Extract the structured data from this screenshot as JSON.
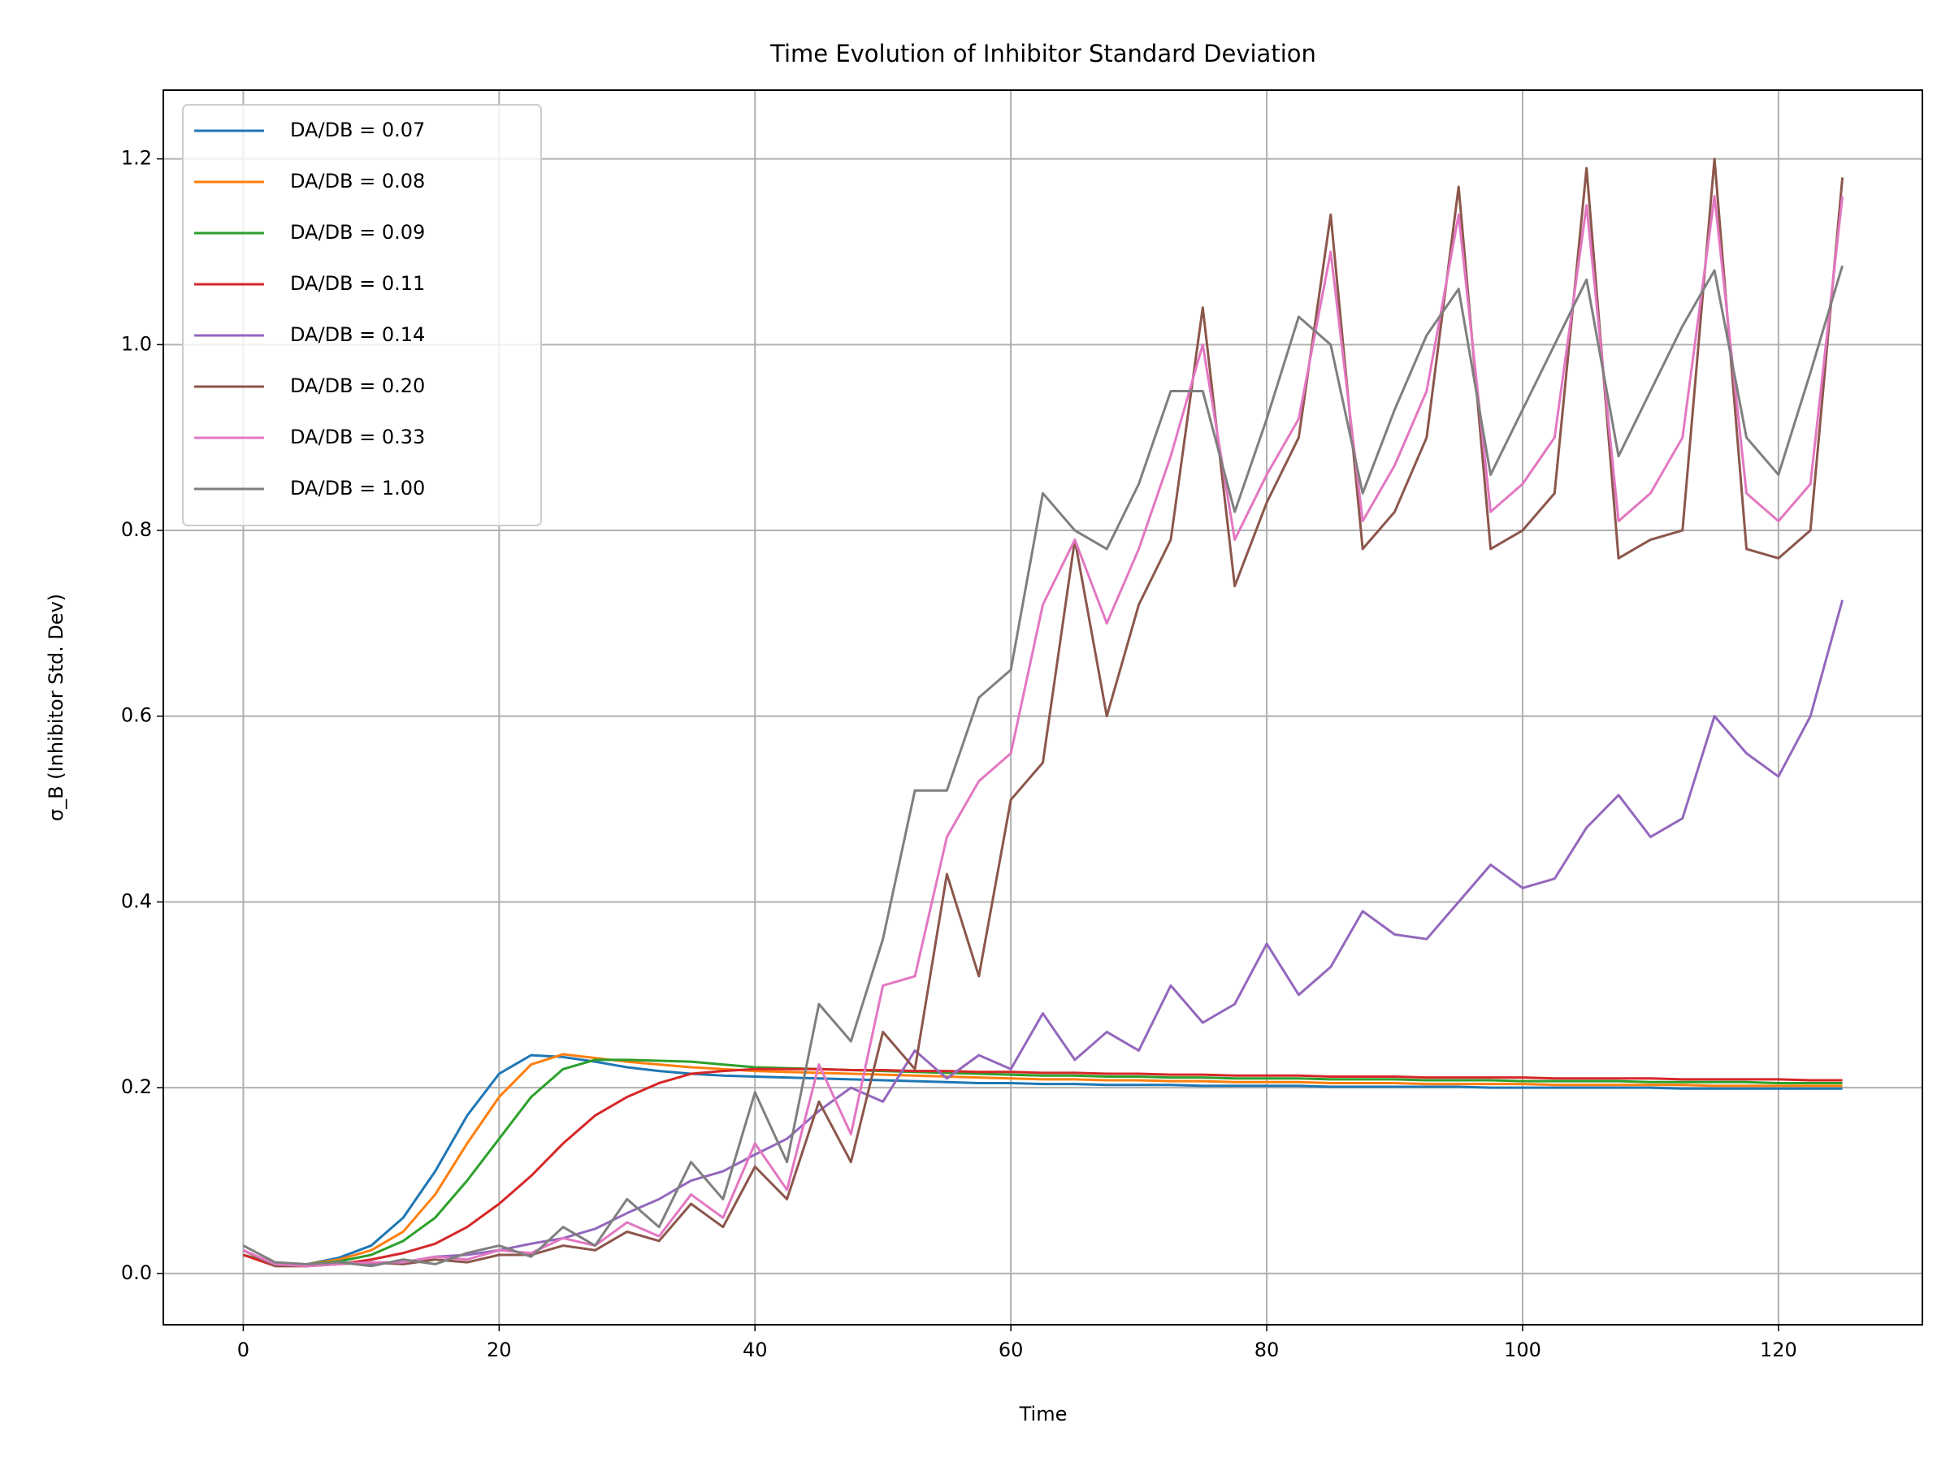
{
  "chart_data": {
    "type": "line",
    "title": "Time Evolution of Inhibitor Standard Deviation",
    "xlabel": "Time",
    "ylabel": "σ_B (Inhibitor Std. Dev)",
    "x": [
      0,
      2.5,
      5,
      7.5,
      10,
      12.5,
      15,
      17.5,
      20,
      22.5,
      25,
      27.5,
      30,
      32.5,
      35,
      37.5,
      40,
      42.5,
      45,
      47.5,
      50,
      52.5,
      55,
      57.5,
      60,
      62.5,
      65,
      67.5,
      70,
      72.5,
      75,
      77.5,
      80,
      82.5,
      85,
      87.5,
      90,
      92.5,
      95,
      97.5,
      100,
      102.5,
      105,
      107.5,
      110,
      112.5,
      115,
      117.5,
      120,
      122.5,
      125
    ],
    "series": [
      {
        "name": "DA/DB = 0.07",
        "color": "#1f77b4",
        "values": [
          0.02,
          0.01,
          0.01,
          0.017,
          0.03,
          0.06,
          0.11,
          0.17,
          0.215,
          0.235,
          0.233,
          0.228,
          0.222,
          0.218,
          0.215,
          0.213,
          0.212,
          0.211,
          0.21,
          0.209,
          0.208,
          0.207,
          0.206,
          0.205,
          0.205,
          0.204,
          0.204,
          0.203,
          0.203,
          0.203,
          0.202,
          0.202,
          0.202,
          0.202,
          0.201,
          0.201,
          0.201,
          0.201,
          0.201,
          0.2,
          0.2,
          0.2,
          0.2,
          0.2,
          0.2,
          0.199,
          0.199,
          0.199,
          0.199,
          0.199,
          0.199
        ]
      },
      {
        "name": "DA/DB = 0.08",
        "color": "#ff7f0e",
        "values": [
          0.02,
          0.01,
          0.01,
          0.015,
          0.025,
          0.045,
          0.085,
          0.14,
          0.19,
          0.225,
          0.236,
          0.232,
          0.228,
          0.225,
          0.222,
          0.22,
          0.218,
          0.217,
          0.216,
          0.215,
          0.214,
          0.213,
          0.212,
          0.211,
          0.21,
          0.209,
          0.209,
          0.208,
          0.208,
          0.207,
          0.207,
          0.206,
          0.206,
          0.206,
          0.205,
          0.205,
          0.205,
          0.204,
          0.204,
          0.204,
          0.204,
          0.203,
          0.203,
          0.203,
          0.203,
          0.203,
          0.202,
          0.202,
          0.202,
          0.202,
          0.202
        ]
      },
      {
        "name": "DA/DB = 0.09",
        "color": "#2ca02c",
        "values": [
          0.02,
          0.01,
          0.01,
          0.013,
          0.02,
          0.035,
          0.06,
          0.1,
          0.145,
          0.19,
          0.22,
          0.23,
          0.23,
          0.229,
          0.228,
          0.225,
          0.222,
          0.221,
          0.22,
          0.219,
          0.218,
          0.217,
          0.216,
          0.215,
          0.214,
          0.213,
          0.213,
          0.212,
          0.212,
          0.211,
          0.211,
          0.21,
          0.21,
          0.21,
          0.209,
          0.209,
          0.209,
          0.208,
          0.208,
          0.208,
          0.207,
          0.207,
          0.207,
          0.207,
          0.206,
          0.206,
          0.206,
          0.206,
          0.205,
          0.205,
          0.205
        ]
      },
      {
        "name": "DA/DB = 0.11",
        "color": "#d62728",
        "values": [
          0.02,
          0.008,
          0.008,
          0.01,
          0.015,
          0.022,
          0.032,
          0.05,
          0.075,
          0.105,
          0.14,
          0.17,
          0.19,
          0.205,
          0.215,
          0.218,
          0.22,
          0.22,
          0.22,
          0.219,
          0.219,
          0.218,
          0.218,
          0.217,
          0.217,
          0.216,
          0.216,
          0.215,
          0.215,
          0.214,
          0.214,
          0.213,
          0.213,
          0.213,
          0.212,
          0.212,
          0.212,
          0.211,
          0.211,
          0.211,
          0.211,
          0.21,
          0.21,
          0.21,
          0.21,
          0.209,
          0.209,
          0.209,
          0.209,
          0.208,
          0.208
        ]
      },
      {
        "name": "DA/DB = 0.14",
        "color": "#9467bd",
        "values": [
          0.025,
          0.01,
          0.008,
          0.012,
          0.01,
          0.012,
          0.018,
          0.02,
          0.025,
          0.032,
          0.038,
          0.048,
          0.065,
          0.08,
          0.1,
          0.11,
          0.128,
          0.145,
          0.175,
          0.2,
          0.185,
          0.24,
          0.21,
          0.235,
          0.22,
          0.28,
          0.23,
          0.26,
          0.24,
          0.31,
          0.27,
          0.29,
          0.355,
          0.3,
          0.33,
          0.39,
          0.365,
          0.36,
          0.4,
          0.44,
          0.415,
          0.425,
          0.48,
          0.515,
          0.47,
          0.49,
          0.6,
          0.56,
          0.535,
          0.6,
          0.725
        ]
      },
      {
        "name": "DA/DB = 0.20",
        "color": "#8c564b",
        "values": [
          0.025,
          0.008,
          0.008,
          0.01,
          0.012,
          0.01,
          0.015,
          0.012,
          0.02,
          0.02,
          0.03,
          0.025,
          0.045,
          0.035,
          0.075,
          0.05,
          0.115,
          0.08,
          0.185,
          0.12,
          0.26,
          0.22,
          0.43,
          0.32,
          0.51,
          0.55,
          0.79,
          0.6,
          0.72,
          0.79,
          1.04,
          0.74,
          0.83,
          0.9,
          1.14,
          0.78,
          0.82,
          0.9,
          1.17,
          0.78,
          0.8,
          0.84,
          1.19,
          0.77,
          0.79,
          0.8,
          1.2,
          0.78,
          0.77,
          0.8,
          1.18
        ]
      },
      {
        "name": "DA/DB = 0.33",
        "color": "#e377c2",
        "values": [
          0.025,
          0.01,
          0.008,
          0.01,
          0.012,
          0.012,
          0.018,
          0.015,
          0.025,
          0.022,
          0.038,
          0.03,
          0.055,
          0.04,
          0.085,
          0.06,
          0.14,
          0.09,
          0.225,
          0.15,
          0.31,
          0.32,
          0.47,
          0.53,
          0.56,
          0.72,
          0.79,
          0.7,
          0.78,
          0.88,
          1.0,
          0.79,
          0.86,
          0.92,
          1.1,
          0.81,
          0.87,
          0.95,
          1.14,
          0.82,
          0.85,
          0.9,
          1.15,
          0.81,
          0.84,
          0.9,
          1.16,
          0.84,
          0.81,
          0.85,
          1.16
        ]
      },
      {
        "name": "DA/DB = 1.00",
        "color": "#7f7f7f",
        "values": [
          0.03,
          0.012,
          0.01,
          0.012,
          0.008,
          0.015,
          0.01,
          0.022,
          0.03,
          0.018,
          0.05,
          0.03,
          0.08,
          0.05,
          0.12,
          0.08,
          0.195,
          0.12,
          0.29,
          0.25,
          0.36,
          0.52,
          0.52,
          0.62,
          0.65,
          0.84,
          0.8,
          0.78,
          0.85,
          0.95,
          0.95,
          0.82,
          0.92,
          1.03,
          1.0,
          0.84,
          0.93,
          1.01,
          1.06,
          0.86,
          0.93,
          1.0,
          1.07,
          0.88,
          0.95,
          1.02,
          1.08,
          0.9,
          0.86,
          0.97,
          1.085
        ]
      }
    ],
    "xlim": [
      -6.25,
      131.25
    ],
    "ylim": [
      -0.0552,
      1.274
    ],
    "xticks": [
      0,
      20,
      40,
      60,
      80,
      100,
      120
    ],
    "yticks": [
      {
        "value": 0,
        "label": "0.0"
      },
      0.2,
      0.4,
      0.6,
      0.8,
      {
        "value": 1,
        "label": "1.0"
      },
      1.2
    ],
    "grid": true,
    "legend": "upper-left"
  }
}
